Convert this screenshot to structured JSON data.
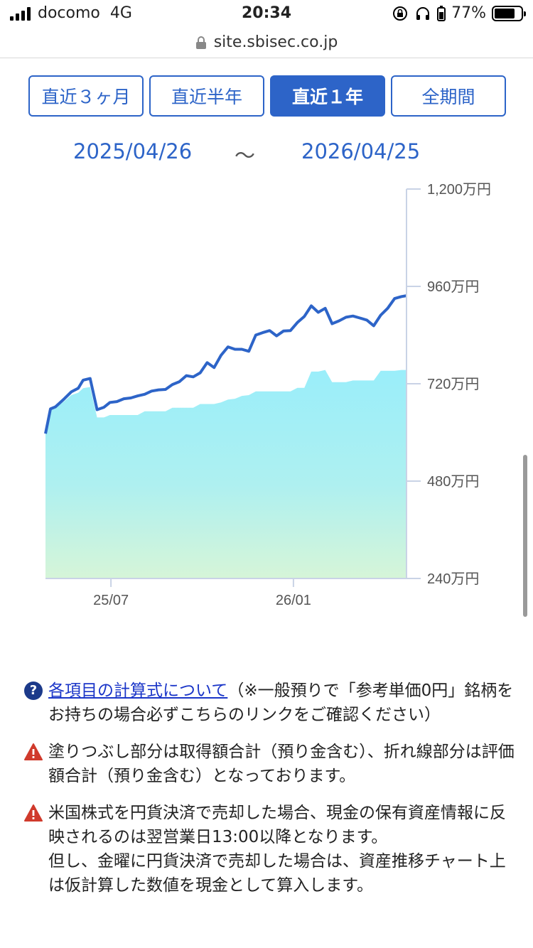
{
  "status_bar": {
    "carrier": "docomo",
    "network": "4G",
    "time": "20:34",
    "battery": "77%",
    "battery_level": 0.77
  },
  "url_bar": {
    "host": "site.sbisec.co.jp"
  },
  "period_tabs": [
    {
      "label": "直近３ヶ月",
      "active": false
    },
    {
      "label": "直近半年",
      "active": false
    },
    {
      "label": "直近１年",
      "active": true
    },
    {
      "label": "全期間",
      "active": false
    }
  ],
  "date_range": {
    "from": "2025/04/26",
    "separator": "～",
    "to": "2026/04/25"
  },
  "chart_data": {
    "type": "area",
    "series": [
      {
        "name": "",
        "style": "line",
        "color": "#2d64c8",
        "x": [
          "2025-04-26",
          "2025-05-01",
          "2025-05-06",
          "2025-05-15",
          "2025-05-22",
          "2025-05-29",
          "2025-06-03",
          "2025-06-10",
          "2025-06-17",
          "2025-06-24",
          "2025-06-30",
          "2025-07-07",
          "2025-07-14",
          "2025-07-21",
          "2025-07-28",
          "2025-08-04",
          "2025-08-11",
          "2025-08-18",
          "2025-08-25",
          "2025-09-01",
          "2025-09-08",
          "2025-09-15",
          "2025-09-22",
          "2025-09-29",
          "2025-10-06",
          "2025-10-13",
          "2025-10-20",
          "2025-10-27",
          "2025-11-03",
          "2025-11-10",
          "2025-11-17",
          "2025-11-24",
          "2025-12-01",
          "2025-12-08",
          "2025-12-15",
          "2025-12-22",
          "2025-12-29",
          "2026-01-05",
          "2026-01-12",
          "2026-01-19",
          "2026-01-26",
          "2026-02-02",
          "2026-02-09",
          "2026-02-16",
          "2026-02-23",
          "2026-03-02",
          "2026-03-09",
          "2026-03-16",
          "2026-03-23",
          "2026-03-30",
          "2026-04-06",
          "2026-04-13",
          "2026-04-20",
          "2026-04-25"
        ],
        "values": [
          597,
          658,
          663,
          683,
          700,
          709,
          729,
          733,
          656,
          662,
          674,
          676,
          683,
          685,
          690,
          694,
          702,
          705,
          706,
          718,
          725,
          740,
          737,
          747,
          772,
          760,
          790,
          811,
          805,
          805,
          800,
          840,
          846,
          851,
          838,
          850,
          851,
          871,
          886,
          912,
          896,
          906,
          868,
          875,
          884,
          887,
          882,
          877,
          863,
          889,
          906,
          930,
          935,
          937
        ]
      },
      {
        "name": "",
        "style": "area",
        "color": "#a9ecf5",
        "x": [
          "2025-04-26",
          "2025-05-01",
          "2025-05-06",
          "2025-05-15",
          "2025-05-22",
          "2025-05-29",
          "2025-06-03",
          "2025-06-10",
          "2025-06-17",
          "2025-06-24",
          "2025-06-30",
          "2025-07-07",
          "2025-07-14",
          "2025-07-21",
          "2025-07-28",
          "2025-08-04",
          "2025-08-11",
          "2025-08-18",
          "2025-08-25",
          "2025-09-01",
          "2025-09-08",
          "2025-09-15",
          "2025-09-22",
          "2025-09-29",
          "2025-10-06",
          "2025-10-13",
          "2025-10-20",
          "2025-10-27",
          "2025-11-03",
          "2025-11-10",
          "2025-11-17",
          "2025-11-24",
          "2025-12-01",
          "2025-12-08",
          "2025-12-15",
          "2025-12-22",
          "2025-12-29",
          "2026-01-05",
          "2026-01-12",
          "2026-01-19",
          "2026-01-26",
          "2026-02-02",
          "2026-02-09",
          "2026-02-16",
          "2026-02-23",
          "2026-03-02",
          "2026-03-09",
          "2026-03-16",
          "2026-03-23",
          "2026-03-30",
          "2026-04-06",
          "2026-04-13",
          "2026-04-20",
          "2026-04-25"
        ],
        "values": [
          606,
          661,
          661,
          677,
          692,
          698,
          709,
          712,
          637,
          637,
          643,
          643,
          643,
          643,
          643,
          652,
          652,
          652,
          652,
          661,
          661,
          661,
          661,
          670,
          670,
          670,
          674,
          681,
          683,
          690,
          692,
          701,
          701,
          701,
          701,
          701,
          701,
          710,
          710,
          750,
          750,
          754,
          724,
          724,
          724,
          728,
          728,
          728,
          728,
          752,
          752,
          752,
          754,
          754
        ]
      }
    ],
    "ylim": [
      240,
      1200
    ],
    "y_ticks": [
      {
        "value": 1200,
        "label": "1,200万円"
      },
      {
        "value": 960,
        "label": "960万円"
      },
      {
        "value": 720,
        "label": "720万円"
      },
      {
        "value": 480,
        "label": "480万円"
      },
      {
        "value": 240,
        "label": "240万円"
      }
    ],
    "x_ticks": [
      {
        "date": "2025-07-01",
        "label": "25/07"
      },
      {
        "date": "2026-01-01",
        "label": "26/01"
      }
    ],
    "y_axis_side": "right",
    "unit": "万円"
  },
  "notes": [
    {
      "icon": "help-icon",
      "link_text": "各項目の計算式について",
      "text": "（※一般預りで「参考単価0円」銘柄をお持ちの場合必ずこちらのリンクをご確認ください）"
    },
    {
      "icon": "warning-icon",
      "text": "塗りつぶし部分は取得額合計（預り金含む）、折れ線部分は評価額合計（預り金含む）となっております。"
    },
    {
      "icon": "warning-icon",
      "text": "米国株式を円貨決済で売却した場合、現金の保有資産情報に反映されるのは翌営業日13:00以降となります。",
      "text2": "但し、金曜に円貨決済で売却した場合は、資産推移チャート上は仮計算した数値を現金として算入します。"
    }
  ]
}
